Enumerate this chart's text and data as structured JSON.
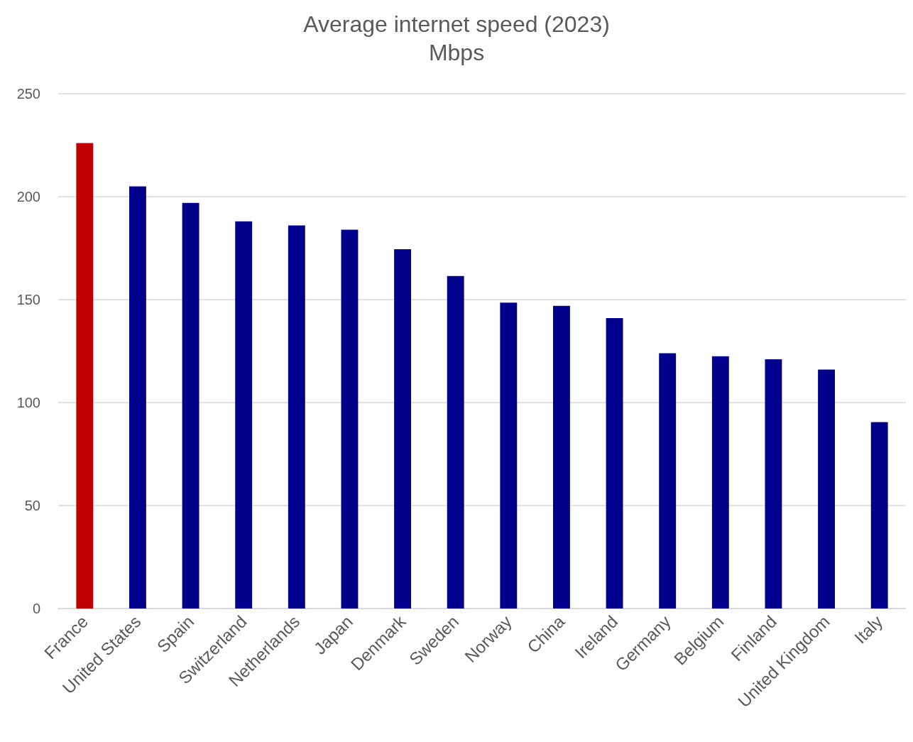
{
  "chart_data": {
    "type": "bar",
    "title": "Average internet speed (2023)",
    "subtitle": "Mbps",
    "categories": [
      "France",
      "United States",
      "Spain",
      "Switzerland",
      "Netherlands",
      "Japan",
      "Denmark",
      "Sweden",
      "Norway",
      "China",
      "Ireland",
      "Germany",
      "Belgium",
      "Finland",
      "United Kingdom",
      "Italy"
    ],
    "values": [
      226,
      205,
      197,
      188,
      186,
      184,
      174.5,
      161.5,
      148.5,
      147,
      141,
      124,
      122.5,
      121,
      116,
      90.5
    ],
    "colors": [
      "#c00000",
      "#00008b",
      "#00008b",
      "#00008b",
      "#00008b",
      "#00008b",
      "#00008b",
      "#00008b",
      "#00008b",
      "#00008b",
      "#00008b",
      "#00008b",
      "#00008b",
      "#00008b",
      "#00008b",
      "#00008b"
    ],
    "ylim": [
      0,
      250
    ],
    "yticks": [
      0,
      50,
      100,
      150,
      200,
      250
    ],
    "grid": "y"
  }
}
